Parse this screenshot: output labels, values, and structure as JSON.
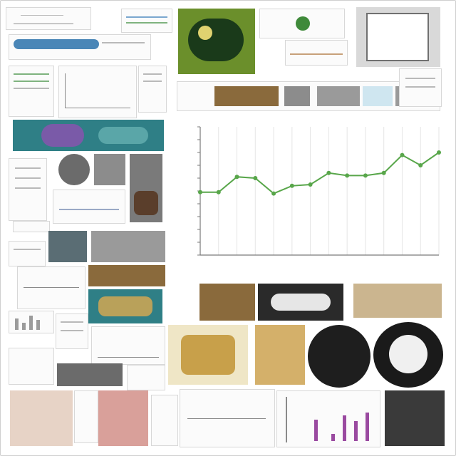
{
  "chart_data": {
    "type": "line",
    "title": "",
    "xlabel": "",
    "ylabel": "",
    "x": [
      1,
      2,
      3,
      4,
      5,
      6,
      7,
      8,
      9,
      10,
      11,
      12,
      13,
      14
    ],
    "series": [
      {
        "values": [
          0.49,
          0.49,
          0.61,
          0.6,
          0.48,
          0.54,
          0.55,
          0.64,
          0.62,
          0.62,
          0.64,
          0.78,
          0.7,
          0.8
        ],
        "color": "#58a64a"
      }
    ],
    "ylim": [
      0,
      1
    ],
    "grid": true,
    "legend": "none"
  },
  "colors": {
    "line": "#58a64a",
    "grid": "#e6e6e6",
    "axis": "#7a7a7a",
    "tile_teal": "#2f7f86",
    "tile_brown": "#8a6a3c",
    "tile_gray": "#9a9a9a"
  }
}
